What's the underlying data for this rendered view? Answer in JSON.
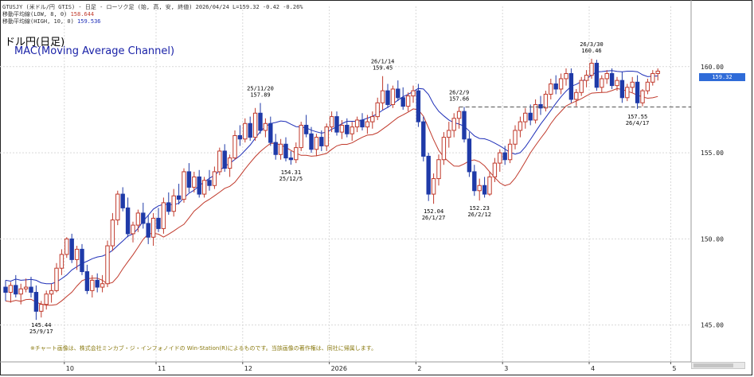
{
  "header": {
    "line1": "GTUSJY (米ドル/円 GTIS) - 日足 - ローソク足 (始, 高, 安, 終値)  2026/04/24  L=159.32  -0.42  -0.26%",
    "line2_label": "移動平均線(LOW, 8, 0)",
    "line2_value": "158.644",
    "line3_label": "移動平均線(HIGH, 10, 0)",
    "line3_value": "159.536"
  },
  "title": "ドル円(日足)",
  "subtitle": "MAC(Moving Average Channel)",
  "footnote": "※チャート画像は、株式会社ミンカブ・ジ・インフォノイドの Win-Station(R)によるものです。当該画像の著作権は、同社に帰属します。",
  "price_badge": "159.32",
  "colors": {
    "up_candle": "#c0392b",
    "down_candle": "#1f3aa8",
    "ma_high": "#1f2fb8",
    "ma_low": "#c0392b",
    "support_line": "#555555",
    "grid": "#d9d9d9",
    "badge": "#2f6bd8"
  },
  "chart_data": {
    "type": "candlestick",
    "title": "ドル円(日足)",
    "subtitle": "MAC(Moving Average Channel)",
    "ylim": [
      143.0,
      163.5
    ],
    "y_ticks": [
      "145.00",
      "150.00",
      "155.00",
      "160.00"
    ],
    "x_tick_labels": [
      "10",
      "11",
      "12",
      "2026",
      "2",
      "3",
      "4",
      "5"
    ],
    "candles_ohlc": [
      [
        147.2,
        147.6,
        146.4,
        146.9
      ],
      [
        146.9,
        147.5,
        146.3,
        147.3
      ],
      [
        147.3,
        147.9,
        146.6,
        146.8
      ],
      [
        146.8,
        147.4,
        146.2,
        147.1
      ],
      [
        147.1,
        147.7,
        146.9,
        147.2
      ],
      [
        147.2,
        147.8,
        146.6,
        146.9
      ],
      [
        146.9,
        147.3,
        145.3,
        145.8
      ],
      [
        145.8,
        146.4,
        145.44,
        146.2
      ],
      [
        146.2,
        147.0,
        145.9,
        146.8
      ],
      [
        146.8,
        147.4,
        146.3,
        147.0
      ],
      [
        147.0,
        148.6,
        146.9,
        148.3
      ],
      [
        148.3,
        149.4,
        147.9,
        149.1
      ],
      [
        149.1,
        150.1,
        148.9,
        150.0
      ],
      [
        150.0,
        150.3,
        148.6,
        148.8
      ],
      [
        148.8,
        149.6,
        148.2,
        149.4
      ],
      [
        149.4,
        149.7,
        147.9,
        148.1
      ],
      [
        148.1,
        148.5,
        146.8,
        147.0
      ],
      [
        147.0,
        147.9,
        146.6,
        147.6
      ],
      [
        147.6,
        148.0,
        146.9,
        147.2
      ],
      [
        147.2,
        147.9,
        146.9,
        147.4
      ],
      [
        147.4,
        149.9,
        147.2,
        149.6
      ],
      [
        149.6,
        151.5,
        149.3,
        151.1
      ],
      [
        151.1,
        152.8,
        150.8,
        152.6
      ],
      [
        152.6,
        153.0,
        151.6,
        151.8
      ],
      [
        151.8,
        152.4,
        150.1,
        150.3
      ],
      [
        150.3,
        151.0,
        149.8,
        150.8
      ],
      [
        150.8,
        151.7,
        150.4,
        151.5
      ],
      [
        151.5,
        152.1,
        150.6,
        150.9
      ],
      [
        150.9,
        151.4,
        149.7,
        150.1
      ],
      [
        150.1,
        151.5,
        149.6,
        151.2
      ],
      [
        151.2,
        151.8,
        150.4,
        150.6
      ],
      [
        150.6,
        152.4,
        150.3,
        152.1
      ],
      [
        152.1,
        152.7,
        151.4,
        151.6
      ],
      [
        151.6,
        152.9,
        151.3,
        152.5
      ],
      [
        152.5,
        153.2,
        152.0,
        152.3
      ],
      [
        152.3,
        154.1,
        152.1,
        153.9
      ],
      [
        153.9,
        154.4,
        152.7,
        153.0
      ],
      [
        153.0,
        153.9,
        152.7,
        153.6
      ],
      [
        153.6,
        154.0,
        152.4,
        152.6
      ],
      [
        152.6,
        153.6,
        152.4,
        153.4
      ],
      [
        153.4,
        154.0,
        152.8,
        153.1
      ],
      [
        153.1,
        154.2,
        152.9,
        153.9
      ],
      [
        153.9,
        155.3,
        153.7,
        155.1
      ],
      [
        155.1,
        155.5,
        153.9,
        154.1
      ],
      [
        154.1,
        154.9,
        153.6,
        154.7
      ],
      [
        154.7,
        156.3,
        154.6,
        156.0
      ],
      [
        156.0,
        156.6,
        155.4,
        155.8
      ],
      [
        155.8,
        157.0,
        155.6,
        156.7
      ],
      [
        156.7,
        157.1,
        155.7,
        155.9
      ],
      [
        155.9,
        157.6,
        155.7,
        157.3
      ],
      [
        157.3,
        157.89,
        156.1,
        156.3
      ],
      [
        156.3,
        157.0,
        155.9,
        156.7
      ],
      [
        156.7,
        157.1,
        155.4,
        155.6
      ],
      [
        155.6,
        156.1,
        154.6,
        154.9
      ],
      [
        154.9,
        155.8,
        154.6,
        155.5
      ],
      [
        155.5,
        155.9,
        154.5,
        154.7
      ],
      [
        154.7,
        155.1,
        154.31,
        154.6
      ],
      [
        154.6,
        155.6,
        154.4,
        155.3
      ],
      [
        155.3,
        156.8,
        155.1,
        156.6
      ],
      [
        156.6,
        157.2,
        155.9,
        156.1
      ],
      [
        156.1,
        156.5,
        155.0,
        155.2
      ],
      [
        155.2,
        156.1,
        154.8,
        155.9
      ],
      [
        155.9,
        156.3,
        155.1,
        155.4
      ],
      [
        155.4,
        156.7,
        155.1,
        156.5
      ],
      [
        156.5,
        157.4,
        156.2,
        157.1
      ],
      [
        157.1,
        157.4,
        156.0,
        156.2
      ],
      [
        156.2,
        156.9,
        155.8,
        156.6
      ],
      [
        156.6,
        157.0,
        155.9,
        156.1
      ],
      [
        156.1,
        156.8,
        155.7,
        156.5
      ],
      [
        156.5,
        157.1,
        156.2,
        156.9
      ],
      [
        156.9,
        157.3,
        156.3,
        156.5
      ],
      [
        156.5,
        157.2,
        156.1,
        156.8
      ],
      [
        156.8,
        157.4,
        156.4,
        157.1
      ],
      [
        157.1,
        158.2,
        156.9,
        157.9
      ],
      [
        157.9,
        159.45,
        157.5,
        158.6
      ],
      [
        158.6,
        159.0,
        157.6,
        157.8
      ],
      [
        157.8,
        158.9,
        157.6,
        158.7
      ],
      [
        158.7,
        159.2,
        158.0,
        158.2
      ],
      [
        158.2,
        158.8,
        157.5,
        157.7
      ],
      [
        157.7,
        158.5,
        157.4,
        158.3
      ],
      [
        158.3,
        158.9,
        157.9,
        158.6
      ],
      [
        158.6,
        159.0,
        156.5,
        156.8
      ],
      [
        156.8,
        157.1,
        154.5,
        154.8
      ],
      [
        154.8,
        155.0,
        152.2,
        152.6
      ],
      [
        152.6,
        153.8,
        152.04,
        153.5
      ],
      [
        153.5,
        154.9,
        153.1,
        154.6
      ],
      [
        154.6,
        156.2,
        154.3,
        155.9
      ],
      [
        155.9,
        156.8,
        155.3,
        156.3
      ],
      [
        156.3,
        157.3,
        155.9,
        157.0
      ],
      [
        157.0,
        157.66,
        156.4,
        157.4
      ],
      [
        157.4,
        157.66,
        155.6,
        155.8
      ],
      [
        155.8,
        156.2,
        153.6,
        153.9
      ],
      [
        153.9,
        154.3,
        152.5,
        152.8
      ],
      [
        152.8,
        153.5,
        152.23,
        153.1
      ],
      [
        153.1,
        153.6,
        152.4,
        152.6
      ],
      [
        152.6,
        153.9,
        152.5,
        153.6
      ],
      [
        153.6,
        154.7,
        153.3,
        154.4
      ],
      [
        154.4,
        155.2,
        153.9,
        155.0
      ],
      [
        155.0,
        155.4,
        154.3,
        154.6
      ],
      [
        154.6,
        155.8,
        154.4,
        155.5
      ],
      [
        155.5,
        156.6,
        155.2,
        156.3
      ],
      [
        156.3,
        157.1,
        155.9,
        156.8
      ],
      [
        156.8,
        157.6,
        156.4,
        157.3
      ],
      [
        157.3,
        157.8,
        156.6,
        156.9
      ],
      [
        156.9,
        158.1,
        156.7,
        157.8
      ],
      [
        157.8,
        158.3,
        157.2,
        157.6
      ],
      [
        157.6,
        158.6,
        157.4,
        158.4
      ],
      [
        158.4,
        159.3,
        158.1,
        159.0
      ],
      [
        159.0,
        159.5,
        158.4,
        158.7
      ],
      [
        158.7,
        159.6,
        158.4,
        159.3
      ],
      [
        159.3,
        159.9,
        158.9,
        159.6
      ],
      [
        159.6,
        159.9,
        157.9,
        158.1
      ],
      [
        158.1,
        158.7,
        157.7,
        158.5
      ],
      [
        158.5,
        159.4,
        158.3,
        159.2
      ],
      [
        159.2,
        159.8,
        158.8,
        159.5
      ],
      [
        159.5,
        160.46,
        159.3,
        160.2
      ],
      [
        160.2,
        160.4,
        158.6,
        158.8
      ],
      [
        158.8,
        159.5,
        158.5,
        159.3
      ],
      [
        159.3,
        159.8,
        159.0,
        159.6
      ],
      [
        159.6,
        159.9,
        158.7,
        158.9
      ],
      [
        158.9,
        159.4,
        158.6,
        159.2
      ],
      [
        159.2,
        159.7,
        157.9,
        158.2
      ],
      [
        158.2,
        159.0,
        158.0,
        158.8
      ],
      [
        158.8,
        159.4,
        158.5,
        159.1
      ],
      [
        159.1,
        159.5,
        157.55,
        157.9
      ],
      [
        157.9,
        158.7,
        157.7,
        158.6
      ],
      [
        158.6,
        159.3,
        158.4,
        159.1
      ],
      [
        159.1,
        159.8,
        158.9,
        159.6
      ],
      [
        159.6,
        159.9,
        159.2,
        159.74
      ]
    ],
    "series": [
      {
        "name": "移動平均線(HIGH, 10, 0)",
        "color": "#1f2fb8"
      },
      {
        "name": "移動平均線(LOW, 8, 0)",
        "color": "#c0392b"
      }
    ],
    "support_level": 157.66,
    "annotations": [
      {
        "label": "145.44\n25/9/17",
        "kind": "low",
        "bar": 7
      },
      {
        "label": "25/11/20\n157.89",
        "kind": "high",
        "bar": 50
      },
      {
        "label": "154.31\n25/12/5",
        "kind": "low",
        "bar": 56
      },
      {
        "label": "26/1/14\n159.45",
        "kind": "high",
        "bar": 74
      },
      {
        "label": "152.04\n26/1/27",
        "kind": "low",
        "bar": 84
      },
      {
        "label": "26/2/9\n157.66",
        "kind": "high",
        "bar": 89
      },
      {
        "label": "152.23\n26/2/12",
        "kind": "low",
        "bar": 93
      },
      {
        "label": "26/3/30\n160.46",
        "kind": "high",
        "bar": 115
      },
      {
        "label": "157.55\n26/4/17",
        "kind": "low",
        "bar": 124
      }
    ]
  }
}
